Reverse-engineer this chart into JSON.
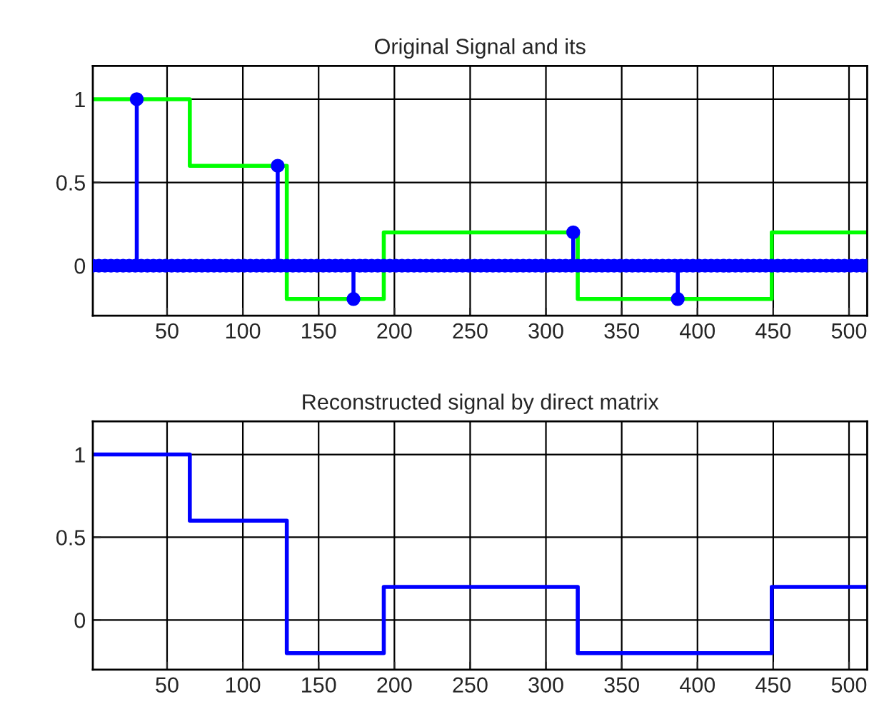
{
  "chart_data": [
    {
      "type": "step",
      "title": "Original Signal and its",
      "xlim": [
        1,
        512
      ],
      "xticks": [
        50,
        100,
        150,
        200,
        250,
        300,
        350,
        400,
        450,
        500
      ],
      "ylim": [
        -0.3,
        1.2
      ],
      "yticks": [
        0,
        0.5,
        1
      ],
      "grid": true,
      "series": [
        {
          "color": "#00ff00",
          "x": [
            1,
            65,
            129,
            193,
            321,
            449,
            512
          ],
          "values": [
            1,
            0.6,
            -0.2,
            0.2,
            -0.2,
            0.2,
            0.2
          ]
        },
        {
          "type": "lollipop",
          "marker": "circle",
          "color": "#0000ff",
          "x": [
            1,
            5,
            9,
            13,
            17,
            21,
            25,
            29,
            33,
            37,
            41,
            45,
            49,
            53,
            57,
            61,
            65,
            69,
            73,
            77,
            81,
            85,
            89,
            93,
            97,
            101,
            105,
            109,
            113,
            117,
            121,
            125,
            129,
            133,
            137,
            141,
            145,
            149,
            153,
            157,
            161,
            165,
            169,
            173,
            177,
            181,
            185,
            189,
            193,
            197,
            201,
            205,
            209,
            213,
            217,
            221,
            225,
            229,
            233,
            237,
            241,
            245,
            249,
            253,
            257,
            261,
            265,
            269,
            273,
            277,
            281,
            285,
            289,
            293,
            297,
            301,
            305,
            309,
            313,
            317,
            321,
            325,
            329,
            333,
            337,
            341,
            345,
            349,
            353,
            357,
            361,
            365,
            369,
            373,
            377,
            381,
            385,
            389,
            393,
            397,
            401,
            405,
            409,
            413,
            417,
            421,
            425,
            429,
            433,
            437,
            441,
            445,
            449,
            453,
            457,
            461,
            465,
            469,
            473,
            477,
            481,
            485,
            489,
            493,
            497,
            501,
            505,
            509,
            512,
            30,
            123,
            173,
            318,
            387
          ],
          "values": [
            0,
            0,
            0,
            0,
            0,
            0,
            0,
            0,
            0,
            0,
            0,
            0,
            0,
            0,
            0,
            0,
            0,
            0,
            0,
            0,
            0,
            0,
            0,
            0,
            0,
            0,
            0,
            0,
            0,
            0,
            0,
            0,
            0,
            0,
            0,
            0,
            0,
            0,
            0,
            0,
            0,
            0,
            0,
            0,
            0,
            0,
            0,
            0,
            0,
            0,
            0,
            0,
            0,
            0,
            0,
            0,
            0,
            0,
            0,
            0,
            0,
            0,
            0,
            0,
            0,
            0,
            0,
            0,
            0,
            0,
            0,
            0,
            0,
            0,
            0,
            0,
            0,
            0,
            0,
            0,
            0,
            0,
            0,
            0,
            0,
            0,
            0,
            0,
            0,
            0,
            0,
            0,
            0,
            0,
            0,
            0,
            0,
            0,
            0,
            0,
            0,
            0,
            0,
            0,
            0,
            0,
            0,
            0,
            0,
            0,
            0,
            0,
            0,
            0,
            0,
            0,
            0,
            0,
            0,
            0,
            0,
            0,
            0,
            0,
            0,
            0,
            0,
            0,
            0,
            1,
            0.6,
            -0.2,
            0.2,
            -0.2
          ]
        }
      ]
    },
    {
      "type": "step",
      "title": "Reconstructed signal by direct matrix",
      "xlim": [
        1,
        512
      ],
      "xticks": [
        50,
        100,
        150,
        200,
        250,
        300,
        350,
        400,
        450,
        500
      ],
      "ylim": [
        -0.3,
        1.2
      ],
      "yticks": [
        0,
        0.5,
        1
      ],
      "grid": true,
      "series": [
        {
          "color": "#0000ff",
          "x": [
            1,
            65,
            129,
            193,
            321,
            449,
            512
          ],
          "values": [
            1,
            0.6,
            -0.2,
            0.2,
            -0.2,
            0.2,
            0.2
          ]
        }
      ]
    }
  ]
}
